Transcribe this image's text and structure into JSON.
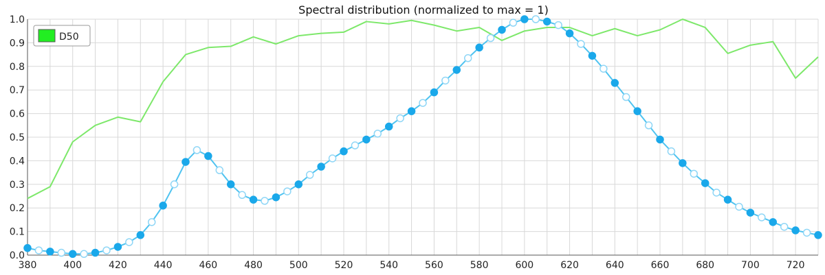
{
  "chart_data": {
    "type": "line",
    "title": "Spectral distribution (normalized to max = 1)",
    "xlabel": "",
    "ylabel": "",
    "xlim": [
      380,
      730
    ],
    "ylim": [
      0,
      1
    ],
    "x_ticks": [
      380,
      400,
      420,
      440,
      460,
      480,
      500,
      520,
      540,
      560,
      580,
      600,
      620,
      640,
      660,
      680,
      700,
      720
    ],
    "y_ticks": [
      "0.0",
      "0.1",
      "0.2",
      "0.3",
      "0.4",
      "0.5",
      "0.6",
      "0.7",
      "0.8",
      "0.9",
      "1.0"
    ],
    "grid": true,
    "legend_position": "top-left",
    "series": [
      {
        "name": "D50",
        "color": "#7de86a",
        "legend_color": "#22ee22",
        "markers": false,
        "x": [
          380,
          390,
          400,
          410,
          420,
          430,
          440,
          450,
          460,
          470,
          480,
          490,
          500,
          510,
          520,
          530,
          540,
          550,
          560,
          570,
          580,
          590,
          600,
          610,
          620,
          630,
          640,
          650,
          660,
          670,
          680,
          690,
          700,
          710,
          720,
          730
        ],
        "y": [
          0.24,
          0.29,
          0.48,
          0.55,
          0.585,
          0.565,
          0.735,
          0.85,
          0.88,
          0.885,
          0.925,
          0.895,
          0.93,
          0.94,
          0.945,
          0.99,
          0.98,
          0.995,
          0.975,
          0.95,
          0.965,
          0.91,
          0.95,
          0.965,
          0.965,
          0.93,
          0.96,
          0.93,
          0.955,
          1.0,
          0.965,
          0.855,
          0.89,
          0.905,
          0.75,
          0.84
        ]
      },
      {
        "name": "",
        "color": "#4fc3f0",
        "markers": true,
        "x": [
          380,
          385,
          390,
          395,
          400,
          405,
          410,
          415,
          420,
          425,
          430,
          435,
          440,
          445,
          450,
          455,
          460,
          465,
          470,
          475,
          480,
          485,
          490,
          495,
          500,
          505,
          510,
          515,
          520,
          525,
          530,
          535,
          540,
          545,
          550,
          555,
          560,
          565,
          570,
          575,
          580,
          585,
          590,
          595,
          600,
          605,
          610,
          615,
          620,
          625,
          630,
          635,
          640,
          645,
          650,
          655,
          660,
          665,
          670,
          675,
          680,
          685,
          690,
          695,
          700,
          705,
          710,
          715,
          720,
          725,
          730
        ],
        "y": [
          0.03,
          0.02,
          0.015,
          0.01,
          0.005,
          0.005,
          0.01,
          0.02,
          0.035,
          0.055,
          0.085,
          0.14,
          0.21,
          0.3,
          0.395,
          0.445,
          0.42,
          0.36,
          0.3,
          0.255,
          0.235,
          0.23,
          0.245,
          0.27,
          0.3,
          0.34,
          0.375,
          0.41,
          0.44,
          0.465,
          0.49,
          0.515,
          0.545,
          0.58,
          0.61,
          0.645,
          0.69,
          0.74,
          0.785,
          0.835,
          0.88,
          0.92,
          0.955,
          0.985,
          1.0,
          1.0,
          0.99,
          0.975,
          0.94,
          0.895,
          0.845,
          0.79,
          0.73,
          0.67,
          0.61,
          0.55,
          0.49,
          0.44,
          0.39,
          0.345,
          0.305,
          0.265,
          0.235,
          0.205,
          0.18,
          0.16,
          0.14,
          0.12,
          0.105,
          0.095,
          0.085
        ]
      }
    ]
  }
}
